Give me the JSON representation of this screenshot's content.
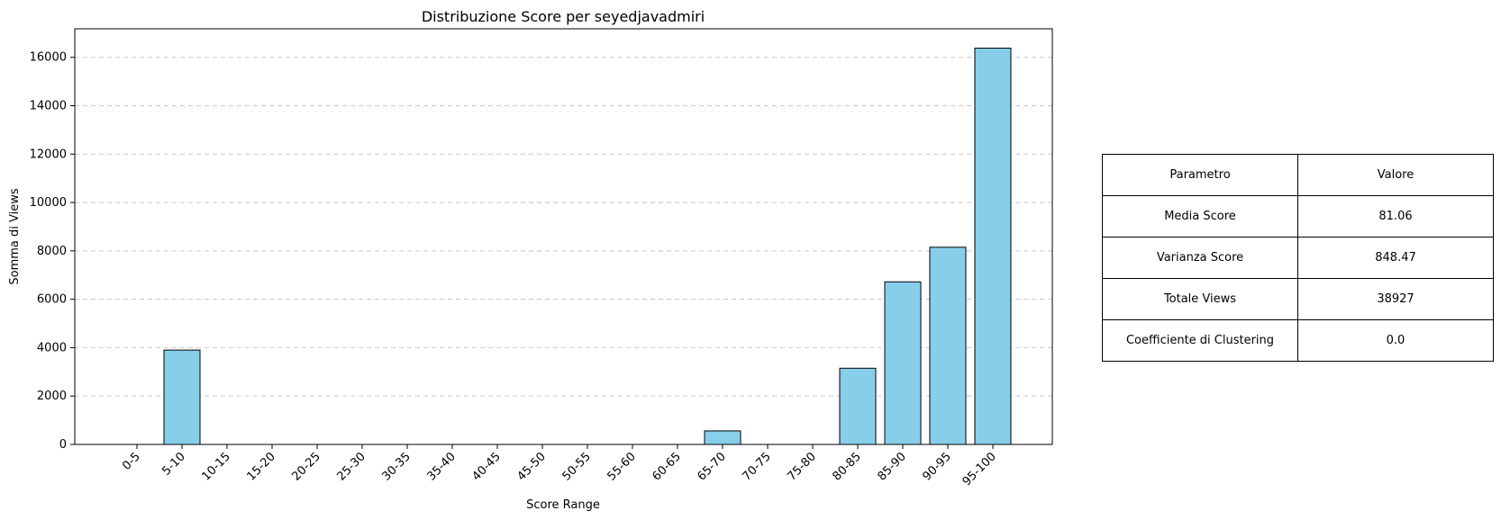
{
  "chart_data": {
    "type": "bar",
    "title": "Distribuzione Score per seyedjavadmiri",
    "xlabel": "Score Range",
    "ylabel": "Somma di Views",
    "categories": [
      "0-5",
      "5-10",
      "10-15",
      "15-20",
      "20-25",
      "25-30",
      "30-35",
      "35-40",
      "40-45",
      "45-50",
      "50-55",
      "55-60",
      "60-65",
      "65-70",
      "70-75",
      "75-80",
      "80-85",
      "85-90",
      "90-95",
      "95-100"
    ],
    "values": [
      0,
      3900,
      0,
      0,
      0,
      0,
      0,
      0,
      0,
      0,
      0,
      0,
      0,
      560,
      0,
      0,
      3150,
      6720,
      8150,
      16380
    ],
    "ylim": [
      0,
      17180
    ],
    "yticks": [
      0,
      2000,
      4000,
      6000,
      8000,
      10000,
      12000,
      14000,
      16000
    ],
    "grid": "horizontal dashed",
    "colors": {
      "bar_fill": "#87CEEB",
      "bar_edge": "#000000",
      "grid": "#c8c8c8"
    }
  },
  "stats_table": {
    "header": [
      "Parametro",
      "Valore"
    ],
    "rows": [
      [
        "Media Score",
        "81.06"
      ],
      [
        "Varianza Score",
        "848.47"
      ],
      [
        "Totale Views",
        "38927"
      ],
      [
        "Coefficiente di Clustering",
        "0.0"
      ]
    ]
  }
}
